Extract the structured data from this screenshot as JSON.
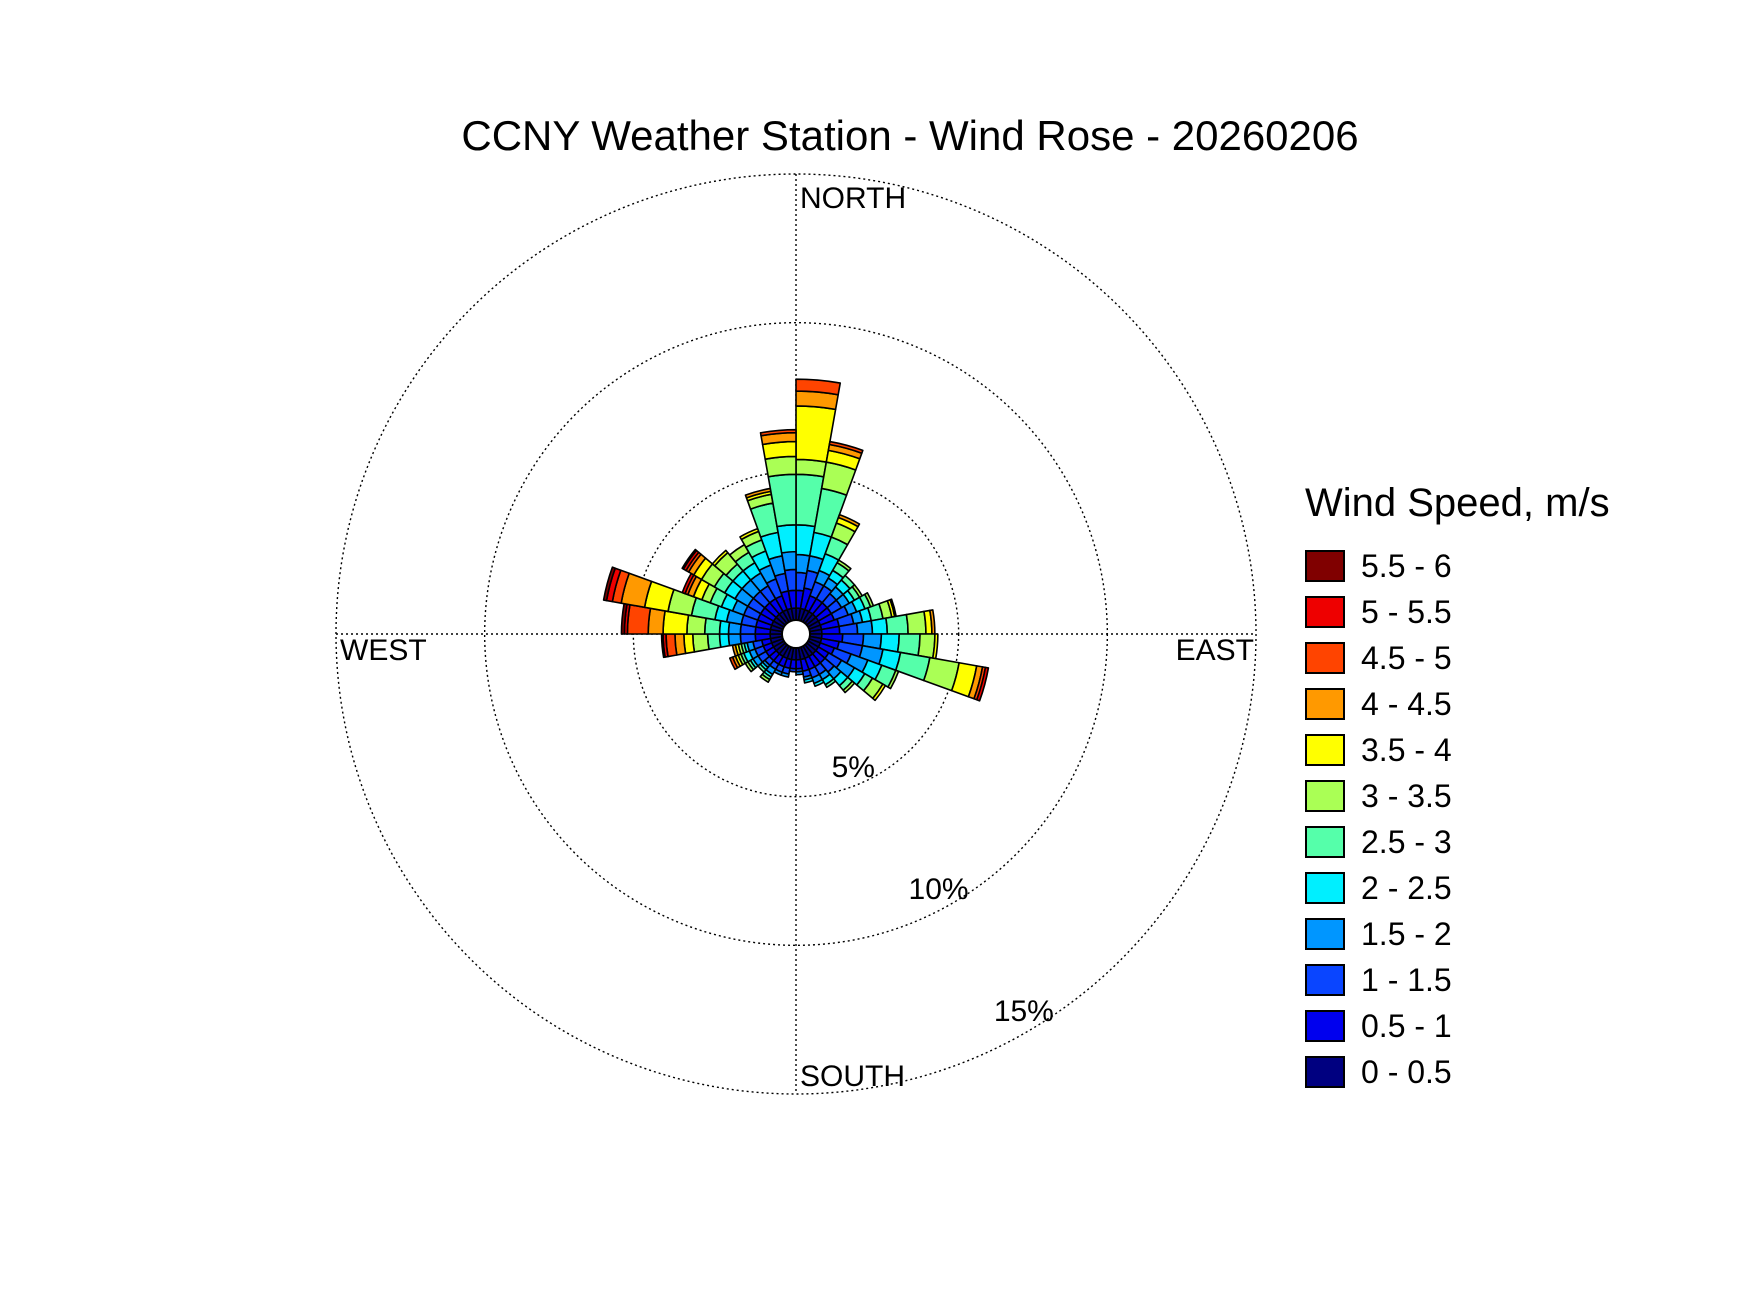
{
  "chart_data": {
    "type": "wind-rose",
    "title": "CCNY Weather Station - Wind Rose - 20260206",
    "legend_title": "Wind Speed, m/s",
    "legend_placement": "right",
    "direction_labels": [
      "NORTH",
      "EAST",
      "SOUTH",
      "WEST"
    ],
    "ring_labels": [
      "5%",
      "10%",
      "15%"
    ],
    "ring_values": [
      5,
      10,
      15
    ],
    "max_radius": 15,
    "grid": true,
    "bin_width_deg": 10,
    "speed_bins": [
      {
        "label": "0 - 0.5",
        "color": "#000080"
      },
      {
        "label": "0.5 - 1",
        "color": "#0000EE"
      },
      {
        "label": "1 - 1.5",
        "color": "#0A45FF"
      },
      {
        "label": "1.5 - 2",
        "color": "#0096FF"
      },
      {
        "label": "2 - 2.5",
        "color": "#00EFFF"
      },
      {
        "label": "2.5 - 3",
        "color": "#55FFAA"
      },
      {
        "label": "3 - 3.5",
        "color": "#AAFF55"
      },
      {
        "label": "3.5 - 4",
        "color": "#FFFF00"
      },
      {
        "label": "4 - 4.5",
        "color": "#FF9900"
      },
      {
        "label": "4.5 - 5",
        "color": "#FF4400"
      },
      {
        "label": "5 - 5.5",
        "color": "#EE0000"
      },
      {
        "label": "5.5 - 6",
        "color": "#800000"
      }
    ],
    "directions": [
      {
        "dir": 5,
        "values": [
          0.4,
          0.6,
          0.6,
          0.6,
          1.0,
          1.7,
          0.5,
          1.8,
          0.5,
          0.4,
          0,
          0
        ]
      },
      {
        "dir": 15,
        "values": [
          0.4,
          0.7,
          0.6,
          0.5,
          0.8,
          1.5,
          0.9,
          0.4,
          0.2,
          0.1,
          0,
          0
        ]
      },
      {
        "dir": 25,
        "values": [
          0.4,
          0.5,
          0.5,
          0.4,
          0.6,
          0.6,
          0.5,
          0.2,
          0.1,
          0,
          0,
          0
        ]
      },
      {
        "dir": 35,
        "values": [
          0.4,
          0.5,
          0.5,
          0.3,
          0.3,
          0.3,
          0.1,
          0,
          0,
          0,
          0,
          0
        ]
      },
      {
        "dir": 45,
        "values": [
          0.4,
          0.5,
          0.4,
          0.3,
          0.3,
          0.2,
          0,
          0,
          0,
          0,
          0,
          0
        ]
      },
      {
        "dir": 55,
        "values": [
          0.4,
          0.5,
          0.4,
          0.3,
          0.2,
          0.2,
          0.1,
          0,
          0,
          0,
          0,
          0
        ]
      },
      {
        "dir": 65,
        "values": [
          0.4,
          0.5,
          0.5,
          0.3,
          0.3,
          0.2,
          0.1,
          0,
          0,
          0,
          0,
          0
        ]
      },
      {
        "dir": 75,
        "values": [
          0.4,
          0.6,
          0.5,
          0.3,
          0.3,
          0.4,
          0.3,
          0.1,
          0.05,
          0,
          0,
          0
        ]
      },
      {
        "dir": 85,
        "values": [
          0.4,
          0.6,
          0.6,
          0.5,
          0.5,
          0.7,
          0.6,
          0.2,
          0.1,
          0,
          0,
          0
        ]
      },
      {
        "dir": 95,
        "values": [
          0.4,
          0.7,
          0.7,
          0.6,
          0.6,
          0.7,
          0.5,
          0.1,
          0,
          0,
          0,
          0
        ]
      },
      {
        "dir": 105,
        "values": [
          0.4,
          0.6,
          0.8,
          0.7,
          0.6,
          1.0,
          1.0,
          0.6,
          0.2,
          0.1,
          0.1,
          0
        ]
      },
      {
        "dir": 115,
        "values": [
          0.4,
          0.5,
          0.6,
          0.6,
          0.5,
          0.5,
          0.1,
          0,
          0,
          0,
          0,
          0
        ]
      },
      {
        "dir": 125,
        "values": [
          0.4,
          0.4,
          0.5,
          0.5,
          0.4,
          0.3,
          0.4,
          0.1,
          0,
          0,
          0,
          0
        ]
      },
      {
        "dir": 135,
        "values": [
          0.4,
          0.4,
          0.4,
          0.3,
          0.3,
          0.2,
          0.1,
          0,
          0,
          0,
          0,
          0
        ]
      },
      {
        "dir": 145,
        "values": [
          0.4,
          0.4,
          0.3,
          0.2,
          0.2,
          0.1,
          0,
          0,
          0,
          0,
          0,
          0
        ]
      },
      {
        "dir": 155,
        "values": [
          0.4,
          0.4,
          0.3,
          0.2,
          0.1,
          0,
          0,
          0,
          0,
          0,
          0,
          0
        ]
      },
      {
        "dir": 165,
        "values": [
          0.4,
          0.4,
          0.2,
          0.1,
          0.1,
          0,
          0,
          0,
          0,
          0,
          0,
          0
        ]
      },
      {
        "dir": 175,
        "values": [
          0.4,
          0.3,
          0.1,
          0.1,
          0,
          0,
          0,
          0,
          0,
          0,
          0,
          0
        ]
      },
      {
        "dir": 185,
        "values": [
          0.4,
          0.3,
          0.1,
          0,
          0,
          0,
          0,
          0,
          0,
          0,
          0,
          0
        ]
      },
      {
        "dir": 195,
        "values": [
          0.4,
          0.3,
          0.2,
          0.1,
          0,
          0,
          0,
          0,
          0,
          0,
          0,
          0
        ]
      },
      {
        "dir": 205,
        "values": [
          0.4,
          0.3,
          0.2,
          0.1,
          0,
          0,
          0,
          0,
          0,
          0,
          0,
          0
        ]
      },
      {
        "dir": 215,
        "values": [
          0.4,
          0.3,
          0.2,
          0.2,
          0.1,
          0.1,
          0.1,
          0,
          0,
          0,
          0,
          0
        ]
      },
      {
        "dir": 225,
        "values": [
          0.4,
          0.3,
          0.2,
          0.1,
          0.1,
          0.1,
          0,
          0,
          0,
          0,
          0,
          0
        ]
      },
      {
        "dir": 235,
        "values": [
          0.4,
          0.3,
          0.3,
          0.2,
          0.1,
          0.1,
          0.1,
          0,
          0,
          0,
          0,
          0
        ]
      },
      {
        "dir": 245,
        "values": [
          0.4,
          0.3,
          0.3,
          0.2,
          0.2,
          0.1,
          0.1,
          0.1,
          0.1,
          0.1,
          0,
          0
        ]
      },
      {
        "dir": 255,
        "values": [
          0.4,
          0.3,
          0.3,
          0.2,
          0.1,
          0.1,
          0.1,
          0.1,
          0.1,
          0,
          0,
          0
        ]
      },
      {
        "dir": 265,
        "values": [
          0.4,
          0.5,
          0.5,
          0.4,
          0.3,
          0.4,
          0.5,
          0.3,
          0.3,
          0.3,
          0.1,
          0.05
        ]
      },
      {
        "dir": 275,
        "values": [
          0.4,
          0.5,
          0.5,
          0.4,
          0.3,
          0.5,
          0.6,
          0.8,
          0.5,
          0.7,
          0.1,
          0.1
        ]
      },
      {
        "dir": 285,
        "values": [
          0.4,
          0.5,
          0.5,
          0.5,
          0.4,
          0.8,
          0.8,
          0.8,
          0.8,
          0.3,
          0.2,
          0.1
        ]
      },
      {
        "dir": 295,
        "values": [
          0.4,
          0.5,
          0.5,
          0.4,
          0.4,
          0.4,
          0.3,
          0.3,
          0.2,
          0.1,
          0.1,
          0
        ]
      },
      {
        "dir": 305,
        "values": [
          0.4,
          0.5,
          0.5,
          0.5,
          0.4,
          0.4,
          0.5,
          0.3,
          0.2,
          0.1,
          0.1,
          0.05
        ]
      },
      {
        "dir": 315,
        "values": [
          0.4,
          0.5,
          0.5,
          0.5,
          0.4,
          0.3,
          0.5,
          0.1,
          0,
          0,
          0,
          0
        ]
      },
      {
        "dir": 325,
        "values": [
          0.4,
          0.5,
          0.5,
          0.5,
          0.4,
          0.4,
          0.3,
          0,
          0,
          0,
          0,
          0
        ]
      },
      {
        "dir": 335,
        "values": [
          0.4,
          0.5,
          0.6,
          0.5,
          0.5,
          0.4,
          0.3,
          0.1,
          0,
          0,
          0,
          0
        ]
      },
      {
        "dir": 345,
        "values": [
          0.4,
          0.6,
          0.6,
          0.6,
          0.8,
          1.0,
          0.3,
          0.1,
          0.1,
          0,
          0,
          0
        ]
      },
      {
        "dir": 355,
        "values": [
          0.4,
          0.6,
          0.7,
          0.6,
          0.9,
          1.7,
          0.6,
          0.5,
          0.3,
          0.1,
          0,
          0
        ]
      }
    ]
  }
}
